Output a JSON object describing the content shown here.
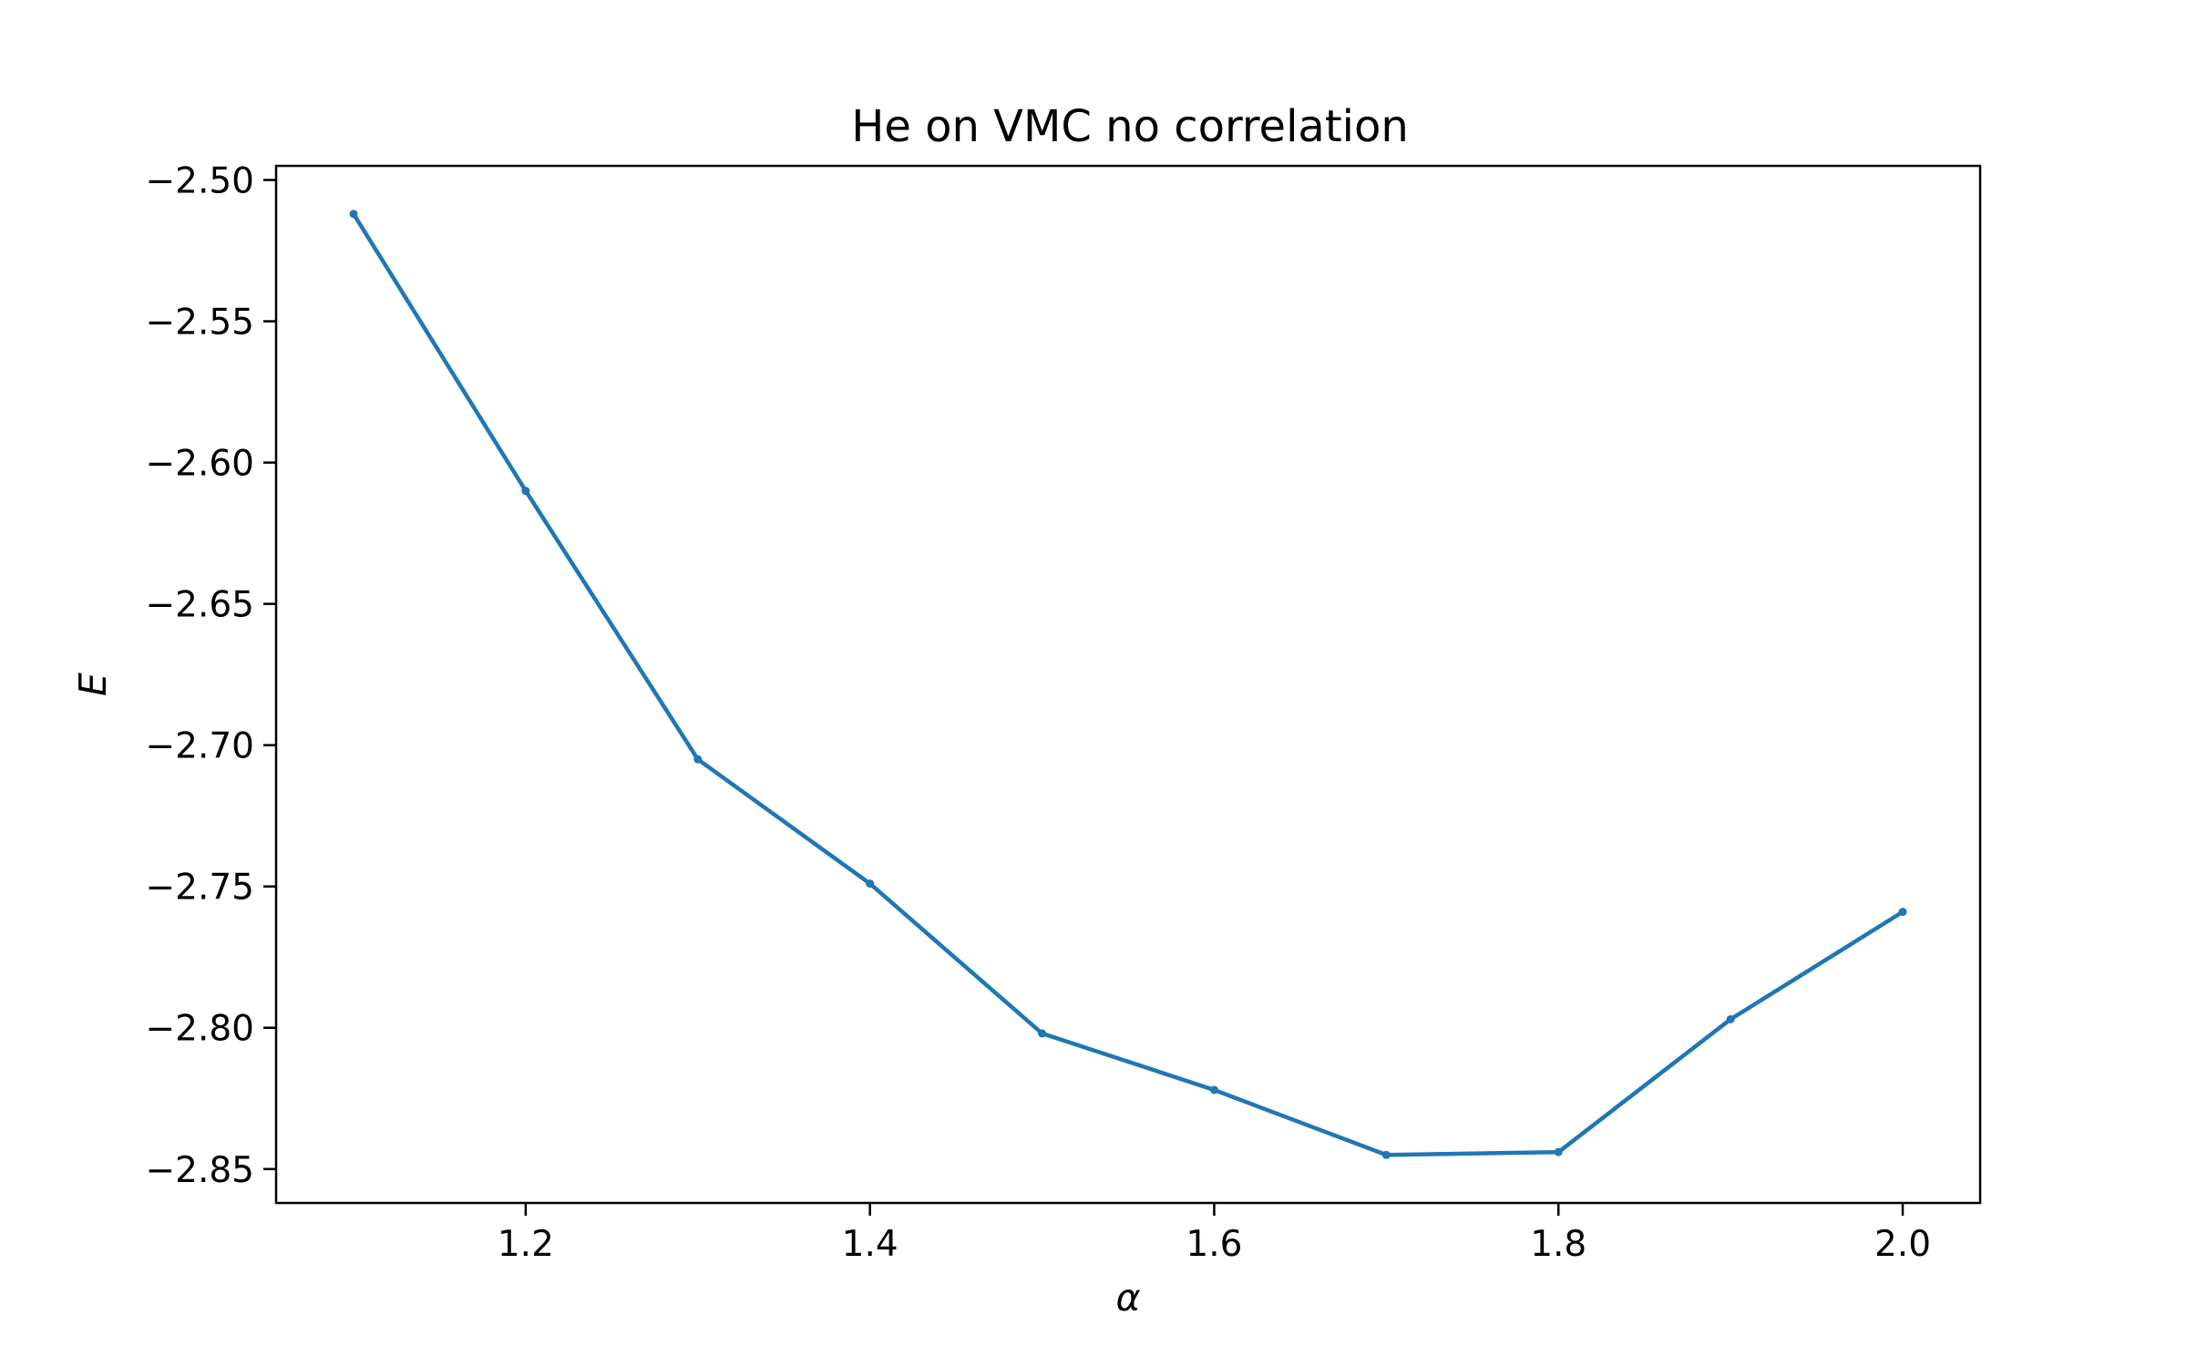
{
  "chart_data": {
    "type": "line",
    "title": "He on VMC no correlation",
    "xlabel": "α",
    "ylabel": "E",
    "xlim": [
      1.055,
      2.045
    ],
    "ylim": [
      -2.862,
      -2.495
    ],
    "xticks": [
      1.2,
      1.4,
      1.6,
      1.8,
      2.0
    ],
    "xtick_labels": [
      "1.2",
      "1.4",
      "1.6",
      "1.8",
      "2.0"
    ],
    "yticks": [
      -2.5,
      -2.55,
      -2.6,
      -2.65,
      -2.7,
      -2.75,
      -2.8,
      -2.85
    ],
    "ytick_labels": [
      "−2.50",
      "−2.55",
      "−2.60",
      "−2.65",
      "−2.70",
      "−2.75",
      "−2.80",
      "−2.85"
    ],
    "grid": false,
    "series": [
      {
        "color": "#1f77b4",
        "marker": "dot",
        "x": [
          1.1,
          1.2,
          1.3,
          1.4,
          1.5,
          1.6,
          1.7,
          1.8,
          1.9,
          2.0
        ],
        "y": [
          -2.512,
          -2.61,
          -2.705,
          -2.749,
          -2.802,
          -2.822,
          -2.845,
          -2.844,
          -2.797,
          -2.759
        ]
      }
    ]
  }
}
